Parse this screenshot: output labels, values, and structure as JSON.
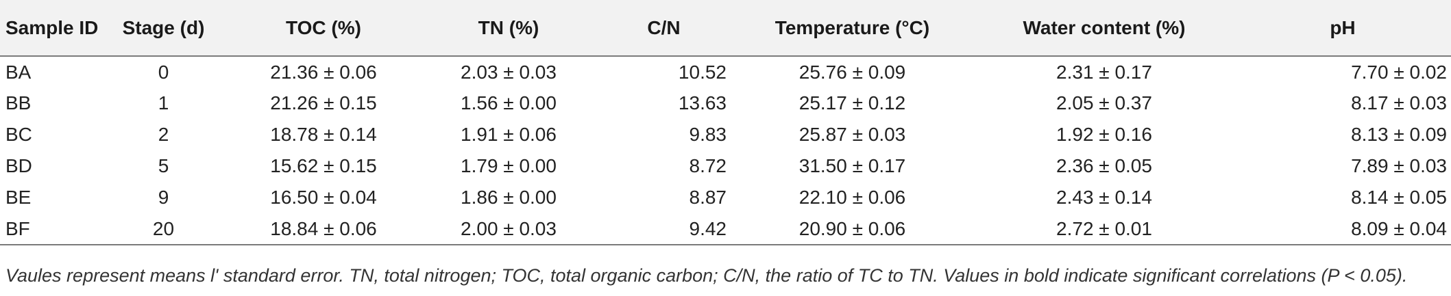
{
  "table": {
    "headers": [
      "Sample ID",
      "Stage (d)",
      "TOC (%)",
      "TN (%)",
      "C/N",
      "Temperature (°C)",
      "Water content (%)",
      "pH"
    ],
    "rows": [
      [
        "BA",
        "0",
        "21.36 ± 0.06",
        "2.03 ± 0.03",
        "10.52",
        "25.76 ± 0.09",
        "2.31 ± 0.17",
        "7.70 ± 0.02"
      ],
      [
        "BB",
        "1",
        "21.26 ± 0.15",
        "1.56 ± 0.00",
        "13.63",
        "25.17 ± 0.12",
        "2.05 ± 0.37",
        "8.17 ± 0.03"
      ],
      [
        "BC",
        "2",
        "18.78 ± 0.14",
        "1.91 ± 0.06",
        "9.83",
        "25.87 ± 0.03",
        "1.92 ± 0.16",
        "8.13 ± 0.09"
      ],
      [
        "BD",
        "5",
        "15.62 ± 0.15",
        "1.79 ± 0.00",
        "8.72",
        "31.50 ± 0.17",
        "2.36 ± 0.05",
        "7.89 ± 0.03"
      ],
      [
        "BE",
        "9",
        "16.50 ± 0.04",
        "1.86 ± 0.00",
        "8.87",
        "22.10 ± 0.06",
        "2.43 ± 0.14",
        "8.14 ± 0.05"
      ],
      [
        "BF",
        "20",
        "18.84 ± 0.06",
        "2.00 ± 0.03",
        "9.42",
        "20.90 ± 0.06",
        "2.72 ± 0.01",
        "8.09 ± 0.04"
      ]
    ]
  },
  "caption": "Vaules represent means l' standard error. TN, total nitrogen; TOC, total organic carbon; C/N, the ratio of TC to TN. Values in bold indicate significant correlations (P < 0.05).",
  "colors": {
    "header_background": "#f2f2f2",
    "rule": "#7a7a7a",
    "text": "#1a1a1a"
  }
}
